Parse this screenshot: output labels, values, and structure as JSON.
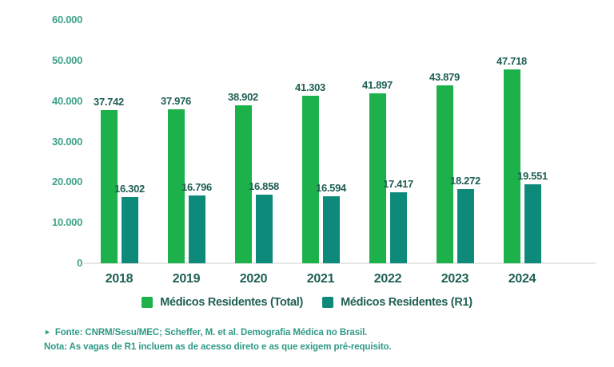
{
  "chart_data": {
    "type": "bar",
    "title": "",
    "xlabel": "",
    "ylabel": "",
    "grid": false,
    "legend_position": "bottom",
    "ylim": [
      0,
      60000
    ],
    "categories": [
      "2018",
      "2019",
      "2020",
      "2021",
      "2022",
      "2023",
      "2024"
    ],
    "y_ticks": [
      {
        "value": 60000,
        "label": "60.000"
      },
      {
        "value": 50000,
        "label": "50.000"
      },
      {
        "value": 40000,
        "label": "40.000"
      },
      {
        "value": 30000,
        "label": "30.000"
      },
      {
        "value": 20000,
        "label": "20.000"
      },
      {
        "value": 10000,
        "label": "10.000"
      },
      {
        "value": 0,
        "label": "0"
      }
    ],
    "series": [
      {
        "name": "Médicos Residentes (Total)",
        "color": "#1db14b",
        "values": [
          37742,
          37976,
          38902,
          41303,
          41897,
          43879,
          47718
        ],
        "labels": [
          "37.742",
          "37.976",
          "38.902",
          "41.303",
          "41.897",
          "43.879",
          "47.718"
        ]
      },
      {
        "name": "Médicos Residentes (R1)",
        "color": "#0e8a7b",
        "values": [
          16302,
          16796,
          16858,
          16594,
          17417,
          18272,
          19551
        ],
        "labels": [
          "16.302",
          "16.796",
          "16.858",
          "16.594",
          "17.417",
          "18.272",
          "19.551"
        ]
      }
    ]
  },
  "footer": {
    "marker": "►",
    "source": "Fonte: CNRM/Sesu/MEC; Scheffer, M. et al. Demografia Médica no Brasil.",
    "note": "Nota: As vagas de R1 incluem as de acesso direto e as que exigem pré-requisito."
  },
  "colors": {
    "axis_label": "#3ea387",
    "dark_label": "#1e5f52",
    "footer_text": "#2f9a86",
    "baseline": "#e6e6e6",
    "background": "#ffffff"
  }
}
